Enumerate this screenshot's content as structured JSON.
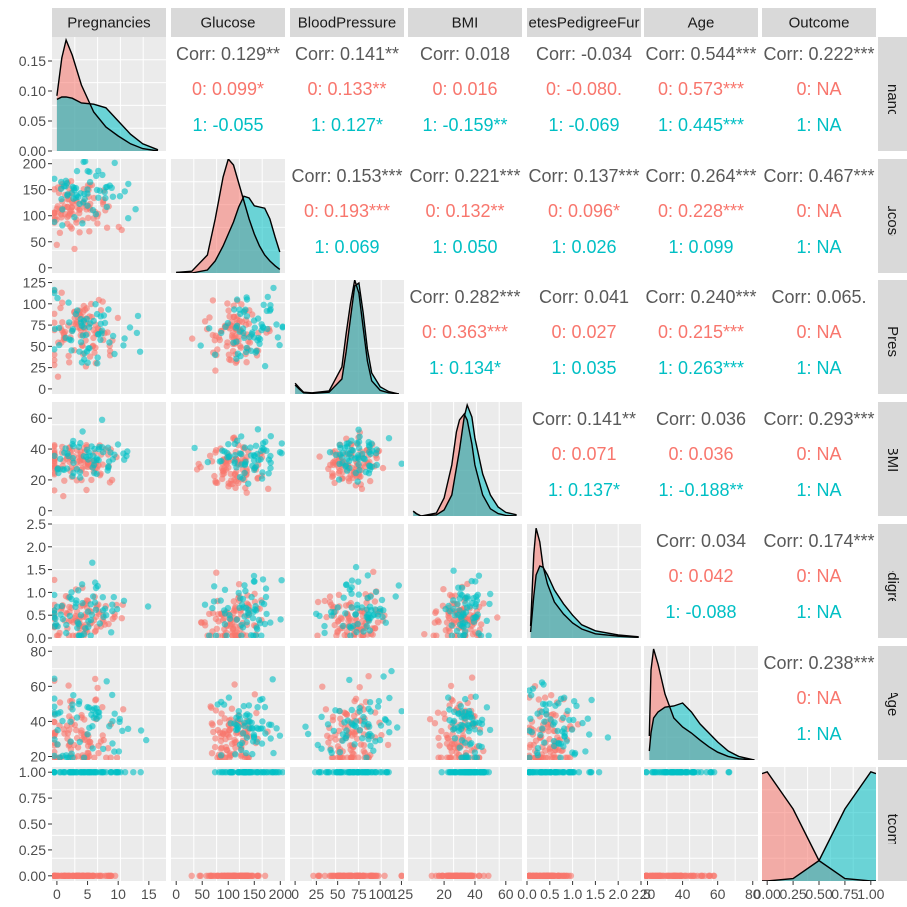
{
  "chart_data": {
    "type": "scatter",
    "title": "",
    "variables": [
      "Pregnancies",
      "Glucose",
      "BloodPressure",
      "BMI",
      "DiabetesPedigreeFunction",
      "Age",
      "Outcome"
    ],
    "strip_labels": {
      "top": [
        "Pregnancies",
        "Glucose",
        "BloodPressure",
        "BMI",
        "etesPedigreeFur",
        "Age",
        "Outcome"
      ],
      "right": [
        "Pregnancies",
        "Glucose",
        "BloodPressure",
        "BMI",
        "etesPedigreeFur",
        "Age",
        "Outcome"
      ]
    },
    "groups": [
      {
        "name": "0",
        "color": "#F8766D"
      },
      {
        "name": "1",
        "color": "#00BFC4"
      }
    ],
    "colors": {
      "panel_bg": "#EBEBEB",
      "grid": "#FFFFFF",
      "strip_bg": "#D9D9D9",
      "text": "#595959",
      "axis_text": "#4D4D4D"
    },
    "axes": {
      "x_ticks": [
        [
          "0",
          "5",
          "10",
          "15"
        ],
        [
          "0",
          "50",
          "100",
          "150",
          "200"
        ],
        [
          "0",
          "25",
          "50",
          "75",
          "100",
          "125"
        ],
        [
          "20",
          "40",
          "60"
        ],
        [
          "0.0",
          "0.5",
          "1.0",
          "1.5",
          "2.0",
          "2.5"
        ],
        [
          "20",
          "40",
          "60",
          "80"
        ],
        [
          "0.00",
          "0.25",
          "0.50",
          "0.75",
          "1.00"
        ]
      ],
      "y_ticks": [
        [
          "0.00",
          "0.05",
          "0.10",
          "0.15"
        ],
        [
          "0",
          "50",
          "100",
          "150",
          "200"
        ],
        [
          "0",
          "25",
          "50",
          "75",
          "100",
          "125"
        ],
        [
          "0",
          "20",
          "40",
          "60"
        ],
        [
          "0.0",
          "0.5",
          "1.0",
          "1.5",
          "2.0",
          "2.5"
        ],
        [
          "20",
          "40",
          "60",
          "80"
        ],
        [
          "0.00",
          "0.25",
          "0.50",
          "0.75",
          "1.00"
        ]
      ]
    },
    "correlations": [
      {
        "row": 0,
        "col": 1,
        "overall": "Corr: 0.129**",
        "g0": "0: 0.099*",
        "g1": "1: -0.055"
      },
      {
        "row": 0,
        "col": 2,
        "overall": "Corr: 0.141**",
        "g0": "0: 0.133**",
        "g1": "1: 0.127*"
      },
      {
        "row": 0,
        "col": 3,
        "overall": "Corr: 0.018",
        "g0": "0: 0.016",
        "g1": "1: -0.159**"
      },
      {
        "row": 0,
        "col": 4,
        "overall": "Corr: -0.034",
        "g0": "0: -0.080.",
        "g1": "1: -0.069"
      },
      {
        "row": 0,
        "col": 5,
        "overall": "Corr: 0.544***",
        "g0": "0: 0.573***",
        "g1": "1: 0.445***"
      },
      {
        "row": 0,
        "col": 6,
        "overall": "Corr: 0.222***",
        "g0": "0:   NA",
        "g1": "1:   NA"
      },
      {
        "row": 1,
        "col": 2,
        "overall": "Corr: 0.153***",
        "g0": "0: 0.193***",
        "g1": "1: 0.069"
      },
      {
        "row": 1,
        "col": 3,
        "overall": "Corr: 0.221***",
        "g0": "0: 0.132**",
        "g1": "1: 0.050"
      },
      {
        "row": 1,
        "col": 4,
        "overall": "Corr: 0.137***",
        "g0": "0: 0.096*",
        "g1": "1: 0.026"
      },
      {
        "row": 1,
        "col": 5,
        "overall": "Corr: 0.264***",
        "g0": "0: 0.228***",
        "g1": "1: 0.099"
      },
      {
        "row": 1,
        "col": 6,
        "overall": "Corr: 0.467***",
        "g0": "0:   NA",
        "g1": "1:   NA"
      },
      {
        "row": 2,
        "col": 3,
        "overall": "Corr: 0.282***",
        "g0": "0: 0.363***",
        "g1": "1: 0.134*"
      },
      {
        "row": 2,
        "col": 4,
        "overall": "Corr: 0.041",
        "g0": "0: 0.027",
        "g1": "1: 0.035"
      },
      {
        "row": 2,
        "col": 5,
        "overall": "Corr: 0.240***",
        "g0": "0: 0.215***",
        "g1": "1: 0.263***"
      },
      {
        "row": 2,
        "col": 6,
        "overall": "Corr: 0.065.",
        "g0": "0:   NA",
        "g1": "1:   NA"
      },
      {
        "row": 3,
        "col": 4,
        "overall": "Corr: 0.141**",
        "g0": "0: 0.071",
        "g1": "1: 0.137*"
      },
      {
        "row": 3,
        "col": 5,
        "overall": "Corr: 0.036",
        "g0": "0: 0.036",
        "g1": "1: -0.188**"
      },
      {
        "row": 3,
        "col": 6,
        "overall": "Corr: 0.293***",
        "g0": "0:   NA",
        "g1": "1:   NA"
      },
      {
        "row": 4,
        "col": 5,
        "overall": "Corr: 0.034",
        "g0": "0: 0.042",
        "g1": "1: -0.088"
      },
      {
        "row": 4,
        "col": 6,
        "overall": "Corr: 0.174***",
        "g0": "0:   NA",
        "g1": "1:   NA"
      },
      {
        "row": 5,
        "col": 6,
        "overall": "Corr: 0.238***",
        "g0": "0:   NA",
        "g1": "1:   NA"
      }
    ],
    "ranges": [
      [
        -0.8,
        17.8
      ],
      [
        -10,
        209
      ],
      [
        -6,
        128
      ],
      [
        -3.4,
        70.5
      ],
      [
        0.0,
        2.5
      ],
      [
        18,
        83
      ],
      [
        -0.05,
        1.05
      ]
    ],
    "density_ylim": [
      0.0,
      0.19
    ],
    "densities": [
      {
        "var": 0,
        "x": [
          0,
          0.8,
          1.5,
          2.5,
          4,
          6,
          8,
          10,
          12,
          14,
          16.5
        ],
        "g0": [
          0.092,
          0.155,
          0.185,
          0.16,
          0.11,
          0.065,
          0.04,
          0.025,
          0.012,
          0.004,
          0.0
        ],
        "g1": [
          0.086,
          0.09,
          0.09,
          0.088,
          0.08,
          0.078,
          0.072,
          0.05,
          0.028,
          0.012,
          0.002
        ]
      },
      {
        "var": 1,
        "x": [
          0,
          30,
          60,
          75,
          90,
          100,
          110,
          120,
          130,
          140,
          150,
          160,
          170,
          180,
          190,
          199
        ],
        "g0": [
          0.001,
          0.003,
          0.03,
          0.09,
          0.16,
          0.19,
          0.18,
          0.15,
          0.12,
          0.09,
          0.065,
          0.045,
          0.03,
          0.02,
          0.012,
          0.006
        ],
        "g1": [
          0.001,
          0.0,
          0.005,
          0.02,
          0.045,
          0.065,
          0.085,
          0.11,
          0.128,
          0.125,
          0.112,
          0.11,
          0.108,
          0.09,
          0.06,
          0.035
        ]
      },
      {
        "var": 2,
        "x": [
          0,
          5,
          10,
          20,
          40,
          55,
          60,
          65,
          70,
          75,
          80,
          85,
          90,
          100,
          110,
          122
        ],
        "g0": [
          0.018,
          0.01,
          0.003,
          0.002,
          0.005,
          0.045,
          0.1,
          0.15,
          0.19,
          0.168,
          0.11,
          0.055,
          0.022,
          0.006,
          0.002,
          0.0
        ],
        "g1": [
          0.015,
          0.008,
          0.002,
          0.001,
          0.003,
          0.025,
          0.07,
          0.125,
          0.18,
          0.185,
          0.135,
          0.075,
          0.035,
          0.012,
          0.004,
          0.0
        ]
      },
      {
        "var": 3,
        "x": [
          0,
          2,
          5,
          15,
          20,
          25,
          28,
          30,
          33,
          35,
          38,
          40,
          45,
          50,
          55,
          60,
          67
        ],
        "g0": [
          0.008,
          0.004,
          0.0,
          0.005,
          0.03,
          0.085,
          0.14,
          0.16,
          0.17,
          0.16,
          0.12,
          0.085,
          0.035,
          0.012,
          0.004,
          0.001,
          0.0
        ],
        "g1": [
          0.008,
          0.004,
          0.0,
          0.002,
          0.01,
          0.035,
          0.08,
          0.11,
          0.165,
          0.185,
          0.165,
          0.13,
          0.07,
          0.035,
          0.015,
          0.006,
          0.002
        ]
      },
      {
        "var": 4,
        "x": [
          0.08,
          0.15,
          0.2,
          0.28,
          0.35,
          0.45,
          0.6,
          0.8,
          1.0,
          1.2,
          1.5,
          2.0,
          2.45
        ],
        "g0": [
          0.02,
          0.14,
          0.183,
          0.16,
          0.12,
          0.09,
          0.06,
          0.04,
          0.025,
          0.015,
          0.007,
          0.003,
          0.001
        ],
        "g1": [
          0.01,
          0.07,
          0.105,
          0.12,
          0.118,
          0.105,
          0.08,
          0.057,
          0.038,
          0.022,
          0.012,
          0.005,
          0.002
        ]
      },
      {
        "var": 5,
        "x": [
          21,
          22,
          23.5,
          26,
          30,
          35,
          40,
          45,
          50,
          55,
          60,
          66,
          72,
          81
        ],
        "g0": [
          0.04,
          0.15,
          0.185,
          0.16,
          0.11,
          0.07,
          0.055,
          0.045,
          0.033,
          0.022,
          0.013,
          0.006,
          0.002,
          0.0
        ],
        "g1": [
          0.015,
          0.045,
          0.07,
          0.08,
          0.088,
          0.09,
          0.095,
          0.08,
          0.06,
          0.045,
          0.03,
          0.015,
          0.006,
          0.0
        ]
      },
      {
        "var": 6,
        "x": [
          -0.05,
          0.0,
          0.25,
          0.5,
          0.75,
          1.0,
          1.05
        ],
        "g0": [
          0.179,
          0.182,
          0.12,
          0.034,
          0.004,
          0.0,
          0.0
        ],
        "g1": [
          0.0,
          0.0,
          0.004,
          0.034,
          0.12,
          0.182,
          0.179
        ]
      }
    ]
  }
}
